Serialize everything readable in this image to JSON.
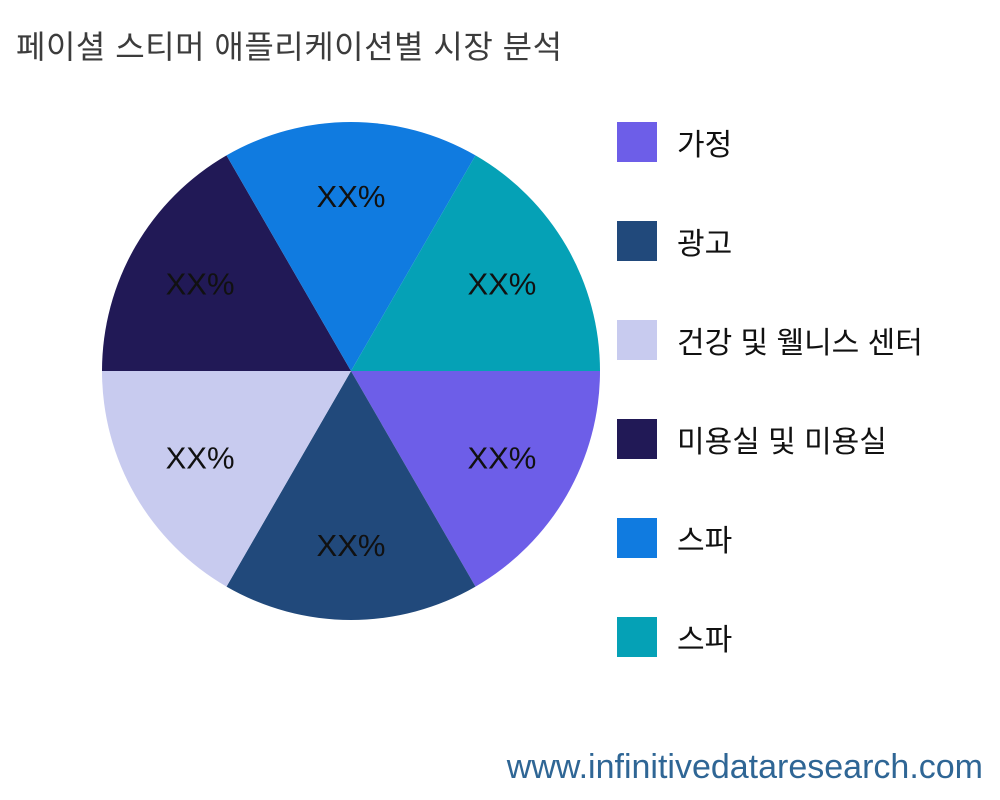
{
  "title": "페이셜 스티머 애플리케이션별 시장 분석",
  "footer": {
    "url": "www.infinitivedataresearch.com",
    "color": "#2f6695"
  },
  "chart_data": {
    "type": "pie",
    "title": "페이셜 스티머 애플리케이션별 시장 분석",
    "percent_label_text": "XX%",
    "start_angle_deg": 0,
    "direction": "clockwise",
    "legend_position": "right",
    "background_color": "#ffffff",
    "slices": [
      {
        "label": "가정",
        "value": 16.67,
        "value_label": "XX%",
        "color": "#6d5ee8"
      },
      {
        "label": "광고",
        "value": 16.67,
        "value_label": "XX%",
        "color": "#21497b"
      },
      {
        "label": "건강 및 웰니스 센터",
        "value": 16.67,
        "value_label": "XX%",
        "color": "#c8cbef"
      },
      {
        "label": "미용실 및 미용실",
        "value": 16.67,
        "value_label": "XX%",
        "color": "#211956"
      },
      {
        "label": "스파",
        "value": 16.67,
        "value_label": "XX%",
        "color": "#107be0"
      },
      {
        "label": "스파",
        "value": 16.67,
        "value_label": "XX%",
        "color": "#05a1b6"
      }
    ]
  }
}
